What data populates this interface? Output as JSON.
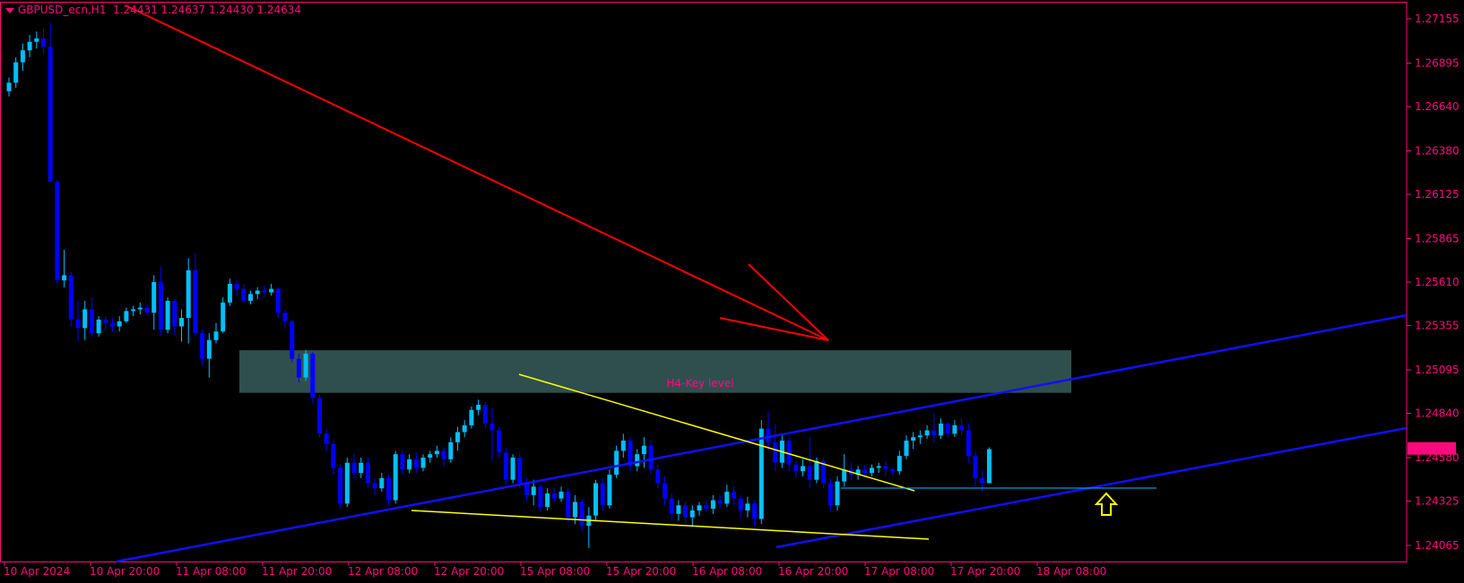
{
  "header": {
    "symbol": "GBPUSD_ecn,H1",
    "ohlc": "1.24431 1.24637 1.24430 1.24634"
  },
  "colors": {
    "background": "#000000",
    "axis": "#ff0a7e",
    "bull_candle": "#00bfff",
    "bear_candle": "#0000ff",
    "trend_red": "#ff0000",
    "channel_blue": "#1010ff",
    "yellow_line": "#ffff00",
    "key_zone": "#2f4f4f",
    "key_label": "#ff1493",
    "support_line": "#00bfff",
    "arrow": "#ffff00"
  },
  "chart_data": {
    "type": "candlestick",
    "timeframe": "H1",
    "current_price": "1.24634",
    "y_ticks": [
      "1.27155",
      "1.26895",
      "1.26640",
      "1.26380",
      "1.26125",
      "1.25865",
      "1.25610",
      "1.25355",
      "1.25095",
      "1.24840",
      "1.24580",
      "1.24325",
      "1.24065"
    ],
    "x_ticks": [
      "10 Apr 2024",
      "10 Apr 20:00",
      "11 Apr 08:00",
      "11 Apr 20:00",
      "12 Apr 08:00",
      "12 Apr 20:00",
      "15 Apr 08:00",
      "15 Apr 20:00",
      "16 Apr 08:00",
      "16 Apr 20:00",
      "17 Apr 08:00",
      "17 Apr 20:00",
      "18 Apr 08:00"
    ],
    "annotations": {
      "key_zone_label": "H4-Key level",
      "key_zone_range": [
        1.2496,
        1.2521
      ]
    },
    "candles": [
      {
        "o": 1.2673,
        "h": 1.2681,
        "l": 1.267,
        "c": 1.2678
      },
      {
        "o": 1.2678,
        "h": 1.2693,
        "l": 1.2675,
        "c": 1.269
      },
      {
        "o": 1.269,
        "h": 1.2701,
        "l": 1.2685,
        "c": 1.2697
      },
      {
        "o": 1.2697,
        "h": 1.2706,
        "l": 1.2693,
        "c": 1.2702
      },
      {
        "o": 1.2702,
        "h": 1.2708,
        "l": 1.2698,
        "c": 1.2704
      },
      {
        "o": 1.2704,
        "h": 1.271,
        "l": 1.2695,
        "c": 1.2699
      },
      {
        "o": 1.2699,
        "h": 1.2713,
        "l": 1.262,
        "c": 1.262
      },
      {
        "o": 1.262,
        "h": 1.2621,
        "l": 1.256,
        "c": 1.2562
      },
      {
        "o": 1.2562,
        "h": 1.258,
        "l": 1.2558,
        "c": 1.2565
      },
      {
        "o": 1.2565,
        "h": 1.2567,
        "l": 1.2535,
        "c": 1.2539
      },
      {
        "o": 1.2539,
        "h": 1.255,
        "l": 1.2526,
        "c": 1.2534
      },
      {
        "o": 1.2534,
        "h": 1.255,
        "l": 1.2527,
        "c": 1.2545
      },
      {
        "o": 1.2545,
        "h": 1.2552,
        "l": 1.2529,
        "c": 1.2531
      },
      {
        "o": 1.2531,
        "h": 1.2541,
        "l": 1.2529,
        "c": 1.2539
      },
      {
        "o": 1.2539,
        "h": 1.2541,
        "l": 1.2533,
        "c": 1.2537
      },
      {
        "o": 1.2537,
        "h": 1.254,
        "l": 1.2532,
        "c": 1.2535
      },
      {
        "o": 1.2535,
        "h": 1.2541,
        "l": 1.2532,
        "c": 1.2538
      },
      {
        "o": 1.2538,
        "h": 1.2546,
        "l": 1.2537,
        "c": 1.2544
      },
      {
        "o": 1.2544,
        "h": 1.2547,
        "l": 1.2541,
        "c": 1.2545
      },
      {
        "o": 1.2545,
        "h": 1.2549,
        "l": 1.2542,
        "c": 1.2546
      },
      {
        "o": 1.2546,
        "h": 1.2548,
        "l": 1.2541,
        "c": 1.2543
      },
      {
        "o": 1.2543,
        "h": 1.2565,
        "l": 1.2533,
        "c": 1.2561
      },
      {
        "o": 1.2561,
        "h": 1.257,
        "l": 1.253,
        "c": 1.2533
      },
      {
        "o": 1.2533,
        "h": 1.2552,
        "l": 1.2531,
        "c": 1.255
      },
      {
        "o": 1.255,
        "h": 1.2551,
        "l": 1.253,
        "c": 1.2535
      },
      {
        "o": 1.2535,
        "h": 1.2545,
        "l": 1.2526,
        "c": 1.254
      },
      {
        "o": 1.254,
        "h": 1.2575,
        "l": 1.2525,
        "c": 1.2568
      },
      {
        "o": 1.2568,
        "h": 1.2578,
        "l": 1.2529,
        "c": 1.2531
      },
      {
        "o": 1.2531,
        "h": 1.2533,
        "l": 1.2512,
        "c": 1.2516
      },
      {
        "o": 1.2516,
        "h": 1.2531,
        "l": 1.2505,
        "c": 1.2527
      },
      {
        "o": 1.2527,
        "h": 1.2537,
        "l": 1.2525,
        "c": 1.2532
      },
      {
        "o": 1.2532,
        "h": 1.2552,
        "l": 1.2531,
        "c": 1.2549
      },
      {
        "o": 1.2549,
        "h": 1.2563,
        "l": 1.2547,
        "c": 1.256
      },
      {
        "o": 1.256,
        "h": 1.2562,
        "l": 1.2553,
        "c": 1.2557
      },
      {
        "o": 1.2557,
        "h": 1.256,
        "l": 1.2549,
        "c": 1.255
      },
      {
        "o": 1.255,
        "h": 1.2556,
        "l": 1.2548,
        "c": 1.2554
      },
      {
        "o": 1.2554,
        "h": 1.2558,
        "l": 1.2551,
        "c": 1.2556
      },
      {
        "o": 1.2556,
        "h": 1.2559,
        "l": 1.2552,
        "c": 1.2555
      },
      {
        "o": 1.2555,
        "h": 1.256,
        "l": 1.2553,
        "c": 1.2557
      },
      {
        "o": 1.2557,
        "h": 1.2558,
        "l": 1.254,
        "c": 1.2543
      },
      {
        "o": 1.2543,
        "h": 1.2545,
        "l": 1.2534,
        "c": 1.2538
      },
      {
        "o": 1.2538,
        "h": 1.2539,
        "l": 1.2514,
        "c": 1.2516
      },
      {
        "o": 1.2516,
        "h": 1.2519,
        "l": 1.2502,
        "c": 1.2505
      },
      {
        "o": 1.2505,
        "h": 1.2521,
        "l": 1.2503,
        "c": 1.2519
      },
      {
        "o": 1.2519,
        "h": 1.252,
        "l": 1.249,
        "c": 1.2493
      },
      {
        "o": 1.2493,
        "h": 1.2495,
        "l": 1.247,
        "c": 1.2472
      },
      {
        "o": 1.2472,
        "h": 1.2475,
        "l": 1.2462,
        "c": 1.2466
      },
      {
        "o": 1.2466,
        "h": 1.2468,
        "l": 1.2448,
        "c": 1.2452
      },
      {
        "o": 1.2452,
        "h": 1.2454,
        "l": 1.2428,
        "c": 1.2431
      },
      {
        "o": 1.2431,
        "h": 1.2458,
        "l": 1.2429,
        "c": 1.2455
      },
      {
        "o": 1.2455,
        "h": 1.246,
        "l": 1.2446,
        "c": 1.2449
      },
      {
        "o": 1.2449,
        "h": 1.2458,
        "l": 1.2446,
        "c": 1.2455
      },
      {
        "o": 1.2455,
        "h": 1.2458,
        "l": 1.244,
        "c": 1.2443
      },
      {
        "o": 1.2443,
        "h": 1.2446,
        "l": 1.2436,
        "c": 1.244
      },
      {
        "o": 1.244,
        "h": 1.2449,
        "l": 1.2438,
        "c": 1.2446
      },
      {
        "o": 1.2446,
        "h": 1.2448,
        "l": 1.243,
        "c": 1.2433
      },
      {
        "o": 1.2433,
        "h": 1.2462,
        "l": 1.2431,
        "c": 1.246
      },
      {
        "o": 1.246,
        "h": 1.2462,
        "l": 1.2448,
        "c": 1.2451
      },
      {
        "o": 1.2451,
        "h": 1.246,
        "l": 1.2449,
        "c": 1.2457
      },
      {
        "o": 1.2457,
        "h": 1.2461,
        "l": 1.2449,
        "c": 1.2452
      },
      {
        "o": 1.2452,
        "h": 1.246,
        "l": 1.245,
        "c": 1.2458
      },
      {
        "o": 1.2458,
        "h": 1.2462,
        "l": 1.2455,
        "c": 1.246
      },
      {
        "o": 1.246,
        "h": 1.2465,
        "l": 1.2458,
        "c": 1.2462
      },
      {
        "o": 1.2462,
        "h": 1.2464,
        "l": 1.2453,
        "c": 1.2457
      },
      {
        "o": 1.2457,
        "h": 1.247,
        "l": 1.2455,
        "c": 1.2467
      },
      {
        "o": 1.2467,
        "h": 1.2476,
        "l": 1.2462,
        "c": 1.2473
      },
      {
        "o": 1.2473,
        "h": 1.248,
        "l": 1.247,
        "c": 1.2477
      },
      {
        "o": 1.2477,
        "h": 1.2488,
        "l": 1.2475,
        "c": 1.2486
      },
      {
        "o": 1.2486,
        "h": 1.2492,
        "l": 1.2483,
        "c": 1.2489
      },
      {
        "o": 1.2489,
        "h": 1.2491,
        "l": 1.2475,
        "c": 1.2478
      },
      {
        "o": 1.2478,
        "h": 1.2487,
        "l": 1.2456,
        "c": 1.2474
      },
      {
        "o": 1.2474,
        "h": 1.2476,
        "l": 1.2458,
        "c": 1.2461
      },
      {
        "o": 1.2461,
        "h": 1.2464,
        "l": 1.2442,
        "c": 1.2445
      },
      {
        "o": 1.2445,
        "h": 1.246,
        "l": 1.2443,
        "c": 1.2458
      },
      {
        "o": 1.2458,
        "h": 1.246,
        "l": 1.244,
        "c": 1.2443
      },
      {
        "o": 1.2443,
        "h": 1.2446,
        "l": 1.2433,
        "c": 1.2436
      },
      {
        "o": 1.2436,
        "h": 1.2445,
        "l": 1.243,
        "c": 1.2441
      },
      {
        "o": 1.2441,
        "h": 1.2442,
        "l": 1.2426,
        "c": 1.2429
      },
      {
        "o": 1.2429,
        "h": 1.244,
        "l": 1.2427,
        "c": 1.2437
      },
      {
        "o": 1.2437,
        "h": 1.244,
        "l": 1.2432,
        "c": 1.2434
      },
      {
        "o": 1.2434,
        "h": 1.2441,
        "l": 1.2432,
        "c": 1.2438
      },
      {
        "o": 1.2438,
        "h": 1.244,
        "l": 1.242,
        "c": 1.2423
      },
      {
        "o": 1.2423,
        "h": 1.2436,
        "l": 1.2419,
        "c": 1.2432
      },
      {
        "o": 1.2432,
        "h": 1.2434,
        "l": 1.2415,
        "c": 1.2418
      },
      {
        "o": 1.2418,
        "h": 1.2429,
        "l": 1.2405,
        "c": 1.2424
      },
      {
        "o": 1.2424,
        "h": 1.2445,
        "l": 1.2421,
        "c": 1.2443
      },
      {
        "o": 1.2443,
        "h": 1.2446,
        "l": 1.2427,
        "c": 1.243
      },
      {
        "o": 1.243,
        "h": 1.2451,
        "l": 1.2428,
        "c": 1.2448
      },
      {
        "o": 1.2448,
        "h": 1.2465,
        "l": 1.2446,
        "c": 1.2462
      },
      {
        "o": 1.2462,
        "h": 1.2472,
        "l": 1.2458,
        "c": 1.2468
      },
      {
        "o": 1.2468,
        "h": 1.247,
        "l": 1.245,
        "c": 1.2453
      },
      {
        "o": 1.2453,
        "h": 1.2463,
        "l": 1.245,
        "c": 1.246
      },
      {
        "o": 1.246,
        "h": 1.247,
        "l": 1.2452,
        "c": 1.2465
      },
      {
        "o": 1.2465,
        "h": 1.2468,
        "l": 1.2448,
        "c": 1.2451
      },
      {
        "o": 1.2451,
        "h": 1.2454,
        "l": 1.244,
        "c": 1.2443
      },
      {
        "o": 1.2443,
        "h": 1.2447,
        "l": 1.243,
        "c": 1.2434
      },
      {
        "o": 1.2434,
        "h": 1.2437,
        "l": 1.2421,
        "c": 1.2425
      },
      {
        "o": 1.2425,
        "h": 1.2433,
        "l": 1.2421,
        "c": 1.243
      },
      {
        "o": 1.243,
        "h": 1.2432,
        "l": 1.242,
        "c": 1.2423
      },
      {
        "o": 1.2423,
        "h": 1.243,
        "l": 1.2418,
        "c": 1.2427
      },
      {
        "o": 1.2427,
        "h": 1.2432,
        "l": 1.2424,
        "c": 1.243
      },
      {
        "o": 1.243,
        "h": 1.2433,
        "l": 1.2426,
        "c": 1.2428
      },
      {
        "o": 1.2428,
        "h": 1.2436,
        "l": 1.2425,
        "c": 1.2433
      },
      {
        "o": 1.2433,
        "h": 1.2436,
        "l": 1.2428,
        "c": 1.2431
      },
      {
        "o": 1.2431,
        "h": 1.2442,
        "l": 1.2429,
        "c": 1.2438
      },
      {
        "o": 1.2438,
        "h": 1.2441,
        "l": 1.243,
        "c": 1.2434
      },
      {
        "o": 1.2434,
        "h": 1.2436,
        "l": 1.2423,
        "c": 1.2427
      },
      {
        "o": 1.2427,
        "h": 1.2435,
        "l": 1.2423,
        "c": 1.2431
      },
      {
        "o": 1.2431,
        "h": 1.2433,
        "l": 1.2418,
        "c": 1.2422
      },
      {
        "o": 1.2422,
        "h": 1.248,
        "l": 1.2419,
        "c": 1.2475
      },
      {
        "o": 1.2475,
        "h": 1.2485,
        "l": 1.2462,
        "c": 1.2467
      },
      {
        "o": 1.2467,
        "h": 1.2478,
        "l": 1.245,
        "c": 1.2455
      },
      {
        "o": 1.2455,
        "h": 1.2471,
        "l": 1.2452,
        "c": 1.2468
      },
      {
        "o": 1.2468,
        "h": 1.247,
        "l": 1.245,
        "c": 1.2454
      },
      {
        "o": 1.2454,
        "h": 1.2456,
        "l": 1.2446,
        "c": 1.245
      },
      {
        "o": 1.245,
        "h": 1.2457,
        "l": 1.2447,
        "c": 1.2453
      },
      {
        "o": 1.2453,
        "h": 1.247,
        "l": 1.244,
        "c": 1.2445
      },
      {
        "o": 1.2445,
        "h": 1.2458,
        "l": 1.2443,
        "c": 1.2456
      },
      {
        "o": 1.2456,
        "h": 1.2458,
        "l": 1.244,
        "c": 1.2443
      },
      {
        "o": 1.2443,
        "h": 1.2446,
        "l": 1.2426,
        "c": 1.243
      },
      {
        "o": 1.243,
        "h": 1.2447,
        "l": 1.2427,
        "c": 1.2444
      },
      {
        "o": 1.2444,
        "h": 1.246,
        "l": 1.2441,
        "c": 1.2451
      },
      {
        "o": 1.2451,
        "h": 1.2455,
        "l": 1.2445,
        "c": 1.2448
      },
      {
        "o": 1.2448,
        "h": 1.2453,
        "l": 1.2445,
        "c": 1.2451
      },
      {
        "o": 1.2451,
        "h": 1.2454,
        "l": 1.2446,
        "c": 1.2449
      },
      {
        "o": 1.2449,
        "h": 1.2454,
        "l": 1.2447,
        "c": 1.2452
      },
      {
        "o": 1.2452,
        "h": 1.2455,
        "l": 1.2449,
        "c": 1.2453
      },
      {
        "o": 1.2453,
        "h": 1.2456,
        "l": 1.2447,
        "c": 1.2451
      },
      {
        "o": 1.2451,
        "h": 1.2452,
        "l": 1.2448,
        "c": 1.245
      },
      {
        "o": 1.245,
        "h": 1.2462,
        "l": 1.2448,
        "c": 1.2459
      },
      {
        "o": 1.2459,
        "h": 1.2471,
        "l": 1.2457,
        "c": 1.2468
      },
      {
        "o": 1.2468,
        "h": 1.2473,
        "l": 1.2463,
        "c": 1.247
      },
      {
        "o": 1.247,
        "h": 1.2474,
        "l": 1.2466,
        "c": 1.2471
      },
      {
        "o": 1.2471,
        "h": 1.2477,
        "l": 1.2469,
        "c": 1.2474
      },
      {
        "o": 1.2474,
        "h": 1.2484,
        "l": 1.2467,
        "c": 1.2471
      },
      {
        "o": 1.2471,
        "h": 1.2481,
        "l": 1.2469,
        "c": 1.2478
      },
      {
        "o": 1.2478,
        "h": 1.2479,
        "l": 1.247,
        "c": 1.2472
      },
      {
        "o": 1.2472,
        "h": 1.248,
        "l": 1.247,
        "c": 1.2477
      },
      {
        "o": 1.2477,
        "h": 1.2481,
        "l": 1.2471,
        "c": 1.2474
      },
      {
        "o": 1.2474,
        "h": 1.2478,
        "l": 1.2455,
        "c": 1.2459
      },
      {
        "o": 1.2459,
        "h": 1.2462,
        "l": 1.2441,
        "c": 1.2446
      },
      {
        "o": 1.2446,
        "h": 1.245,
        "l": 1.2438,
        "c": 1.2443
      },
      {
        "o": 1.2443,
        "h": 1.2464,
        "l": 1.2443,
        "c": 1.2463
      }
    ]
  }
}
